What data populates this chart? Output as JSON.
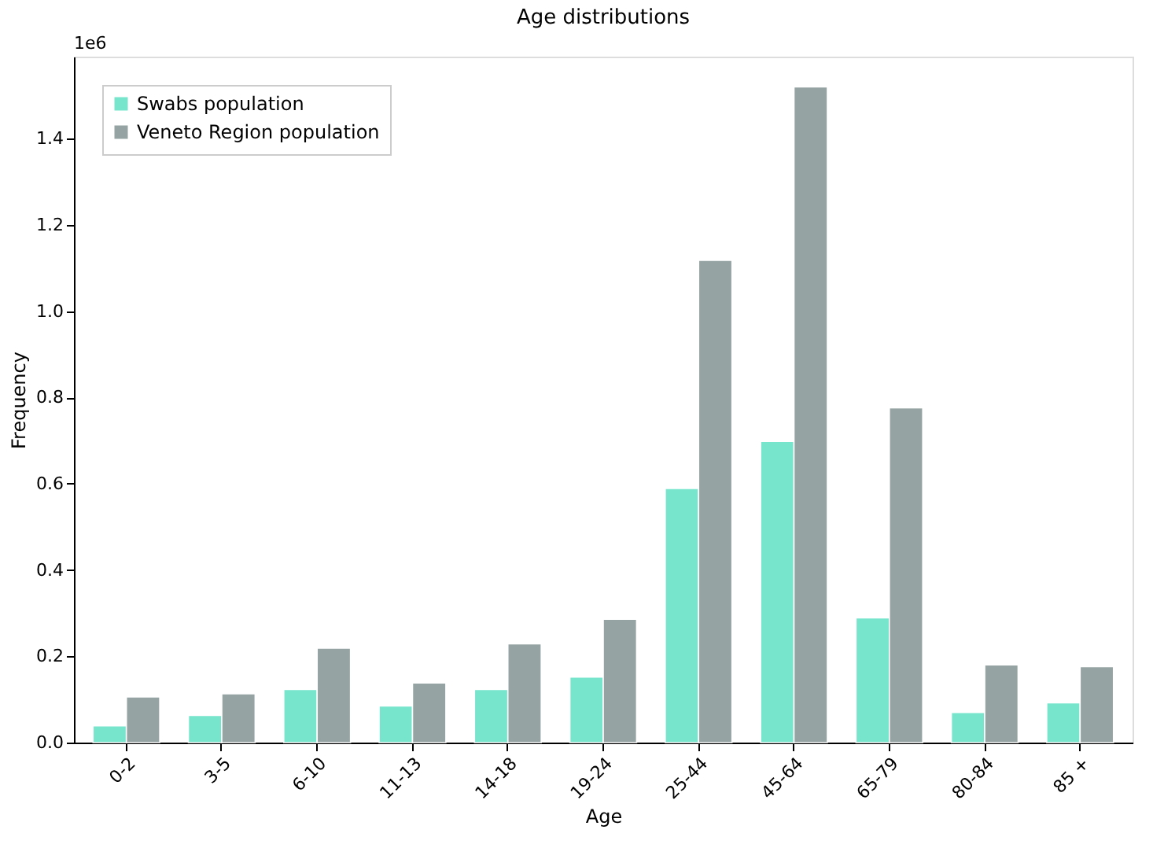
{
  "chart_data": {
    "type": "bar",
    "title": "Age distributions",
    "xlabel": "Age",
    "ylabel": "Frequency",
    "annotations": [
      "1e6"
    ],
    "categories": [
      "0-2",
      "3-5",
      "6-10",
      "11-13",
      "14-18",
      "19-24",
      "25-44",
      "45-64",
      "65-79",
      "80-84",
      "85 +"
    ],
    "series": [
      {
        "name": "Swabs population",
        "color": "#76e5cc",
        "values": [
          0.039,
          0.063,
          0.123,
          0.085,
          0.123,
          0.152,
          0.589,
          0.698,
          0.289,
          0.07,
          0.092
        ]
      },
      {
        "name": "Veneto Region population",
        "color": "#95a3a2",
        "values": [
          0.106,
          0.113,
          0.219,
          0.138,
          0.229,
          0.286,
          1.118,
          1.52,
          0.776,
          0.18,
          0.176
        ]
      }
    ],
    "ylim": [
      0,
      1.59
    ],
    "yticks": [
      {
        "value": 0,
        "label": "0.0"
      },
      {
        "value": 0.2,
        "label": "0.2"
      },
      {
        "value": 0.4,
        "label": "0.4"
      },
      {
        "value": 0.6,
        "label": "0.6"
      },
      {
        "value": 0.8,
        "label": "0.8"
      },
      {
        "value": 1.0,
        "label": "1.0"
      },
      {
        "value": 1.2,
        "label": "1.2"
      },
      {
        "value": 1.4,
        "label": "1.4"
      }
    ],
    "legend": "top left",
    "grid": false
  }
}
